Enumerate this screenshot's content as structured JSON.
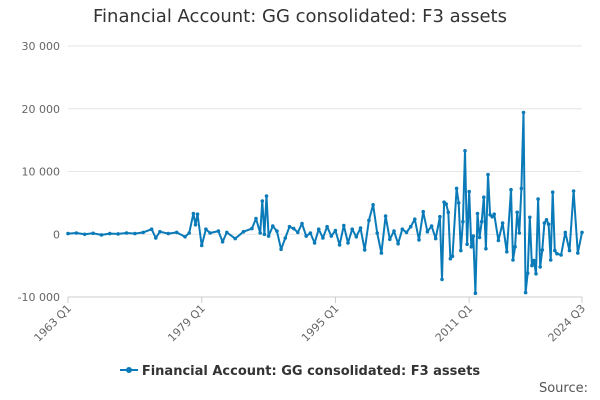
{
  "colors": {
    "series": "#0a7bb8",
    "grid": "#e6e6e6",
    "axis": "#cccccc"
  },
  "source_label": "Source:",
  "chart_data": {
    "type": "line",
    "title": "Financial Account: GG consolidated: F3 assets",
    "xlabel": "",
    "ylabel": "",
    "x_range": [
      "1963 Q1",
      "2024 Q3"
    ],
    "x_tick_labels": [
      "1963 Q1",
      "1979 Q1",
      "1995 Q1",
      "2011 Q1",
      "2024 Q3"
    ],
    "y_ticks": [
      -10000,
      0,
      10000,
      20000,
      30000
    ],
    "y_tick_labels": [
      "-10 000",
      "0",
      "10 000",
      "20 000",
      "30 000"
    ],
    "ylim": [
      -10000,
      30000
    ],
    "grid": true,
    "legend": "bottom-center",
    "series": [
      {
        "name": "Financial Account: GG consolidated: F3 assets",
        "points": [
          [
            "1963 Q1",
            100
          ],
          [
            "1964 Q1",
            200
          ],
          [
            "1965 Q1",
            0
          ],
          [
            "1966 Q1",
            150
          ],
          [
            "1967 Q1",
            -100
          ],
          [
            "1968 Q1",
            100
          ],
          [
            "1969 Q1",
            50
          ],
          [
            "1970 Q1",
            200
          ],
          [
            "1971 Q1",
            100
          ],
          [
            "1972 Q1",
            300
          ],
          [
            "1973 Q1",
            800
          ],
          [
            "1973 Q3",
            -600
          ],
          [
            "1974 Q1",
            400
          ],
          [
            "1975 Q1",
            100
          ],
          [
            "1976 Q1",
            300
          ],
          [
            "1977 Q1",
            -400
          ],
          [
            "1977 Q3",
            200
          ],
          [
            "1978 Q1",
            3300
          ],
          [
            "1978 Q2",
            1500
          ],
          [
            "1978 Q3",
            3200
          ],
          [
            "1979 Q1",
            -1800
          ],
          [
            "1979 Q3",
            800
          ],
          [
            "1980 Q1",
            200
          ],
          [
            "1981 Q1",
            500
          ],
          [
            "1981 Q3",
            -1200
          ],
          [
            "1982 Q1",
            300
          ],
          [
            "1983 Q1",
            -700
          ],
          [
            "1984 Q1",
            400
          ],
          [
            "1985 Q1",
            900
          ],
          [
            "1985 Q3",
            2500
          ],
          [
            "1986 Q1",
            200
          ],
          [
            "1986 Q2",
            5300
          ],
          [
            "1986 Q3",
            0
          ],
          [
            "1986 Q4",
            6100
          ],
          [
            "1987 Q1",
            -300
          ],
          [
            "1987 Q3",
            1300
          ],
          [
            "1988 Q1",
            500
          ],
          [
            "1988 Q3",
            -2400
          ],
          [
            "1989 Q1",
            -600
          ],
          [
            "1989 Q3",
            1200
          ],
          [
            "1990 Q1",
            900
          ],
          [
            "1990 Q3",
            300
          ],
          [
            "1991 Q1",
            1700
          ],
          [
            "1991 Q3",
            -300
          ],
          [
            "1992 Q1",
            200
          ],
          [
            "1992 Q3",
            -1400
          ],
          [
            "1993 Q1",
            800
          ],
          [
            "1993 Q3",
            -600
          ],
          [
            "1994 Q1",
            1200
          ],
          [
            "1994 Q3",
            -300
          ],
          [
            "1995 Q1",
            600
          ],
          [
            "1995 Q3",
            -1700
          ],
          [
            "1996 Q1",
            1400
          ],
          [
            "1996 Q3",
            -1400
          ],
          [
            "1997 Q1",
            800
          ],
          [
            "1997 Q3",
            -400
          ],
          [
            "1998 Q1",
            1000
          ],
          [
            "1998 Q3",
            -2500
          ],
          [
            "1999 Q1",
            2200
          ],
          [
            "1999 Q3",
            4700
          ],
          [
            "2000 Q1",
            200
          ],
          [
            "2000 Q3",
            -3000
          ],
          [
            "2001 Q1",
            2900
          ],
          [
            "2001 Q3",
            -800
          ],
          [
            "2002 Q1",
            500
          ],
          [
            "2002 Q3",
            -1500
          ],
          [
            "2003 Q1",
            800
          ],
          [
            "2003 Q3",
            300
          ],
          [
            "2004 Q1",
            1200
          ],
          [
            "2004 Q3",
            2400
          ],
          [
            "2005 Q1",
            -900
          ],
          [
            "2005 Q3",
            3600
          ],
          [
            "2006 Q1",
            400
          ],
          [
            "2006 Q3",
            1300
          ],
          [
            "2007 Q1",
            -700
          ],
          [
            "2007 Q3",
            2800
          ],
          [
            "2007 Q4",
            -7200
          ],
          [
            "2008 Q1",
            5100
          ],
          [
            "2008 Q2",
            4800
          ],
          [
            "2008 Q3",
            3500
          ],
          [
            "2008 Q4",
            -3900
          ],
          [
            "2009 Q1",
            -3500
          ],
          [
            "2009 Q3",
            7300
          ],
          [
            "2009 Q4",
            5000
          ],
          [
            "2010 Q1",
            -2600
          ],
          [
            "2010 Q2",
            2000
          ],
          [
            "2010 Q3",
            13300
          ],
          [
            "2010 Q4",
            -1600
          ],
          [
            "2011 Q1",
            6800
          ],
          [
            "2011 Q2",
            -2000
          ],
          [
            "2011 Q3",
            -300
          ],
          [
            "2011 Q4",
            -9400
          ],
          [
            "2012 Q1",
            3300
          ],
          [
            "2012 Q2",
            -500
          ],
          [
            "2012 Q3",
            2000
          ],
          [
            "2012 Q4",
            5900
          ],
          [
            "2013 Q1",
            -2300
          ],
          [
            "2013 Q2",
            9500
          ],
          [
            "2013 Q3",
            3100
          ],
          [
            "2013 Q4",
            2800
          ],
          [
            "2014 Q1",
            3200
          ],
          [
            "2014 Q3",
            -1000
          ],
          [
            "2015 Q1",
            1800
          ],
          [
            "2015 Q3",
            -2800
          ],
          [
            "2016 Q1",
            7100
          ],
          [
            "2016 Q2",
            -4100
          ],
          [
            "2016 Q3",
            -2000
          ],
          [
            "2016 Q4",
            3500
          ],
          [
            "2017 Q1",
            200
          ],
          [
            "2017 Q2",
            7300
          ],
          [
            "2017 Q3",
            19400
          ],
          [
            "2017 Q4",
            -9300
          ],
          [
            "2018 Q1",
            -6200
          ],
          [
            "2018 Q2",
            2700
          ],
          [
            "2018 Q3",
            -5000
          ],
          [
            "2018 Q4",
            -4200
          ],
          [
            "2019 Q1",
            -6300
          ],
          [
            "2019 Q2",
            5600
          ],
          [
            "2019 Q3",
            -5200
          ],
          [
            "2019 Q4",
            -2500
          ],
          [
            "2020 Q1",
            1800
          ],
          [
            "2020 Q2",
            2300
          ],
          [
            "2020 Q3",
            1600
          ],
          [
            "2020 Q4",
            -4100
          ],
          [
            "2021 Q1",
            6700
          ],
          [
            "2021 Q2",
            -2600
          ],
          [
            "2021 Q3",
            -3100
          ],
          [
            "2022 Q1",
            -3300
          ],
          [
            "2022 Q3",
            300
          ],
          [
            "2023 Q1",
            -2600
          ],
          [
            "2023 Q3",
            6900
          ],
          [
            "2024 Q1",
            -3000
          ],
          [
            "2024 Q3",
            300
          ]
        ]
      }
    ]
  }
}
